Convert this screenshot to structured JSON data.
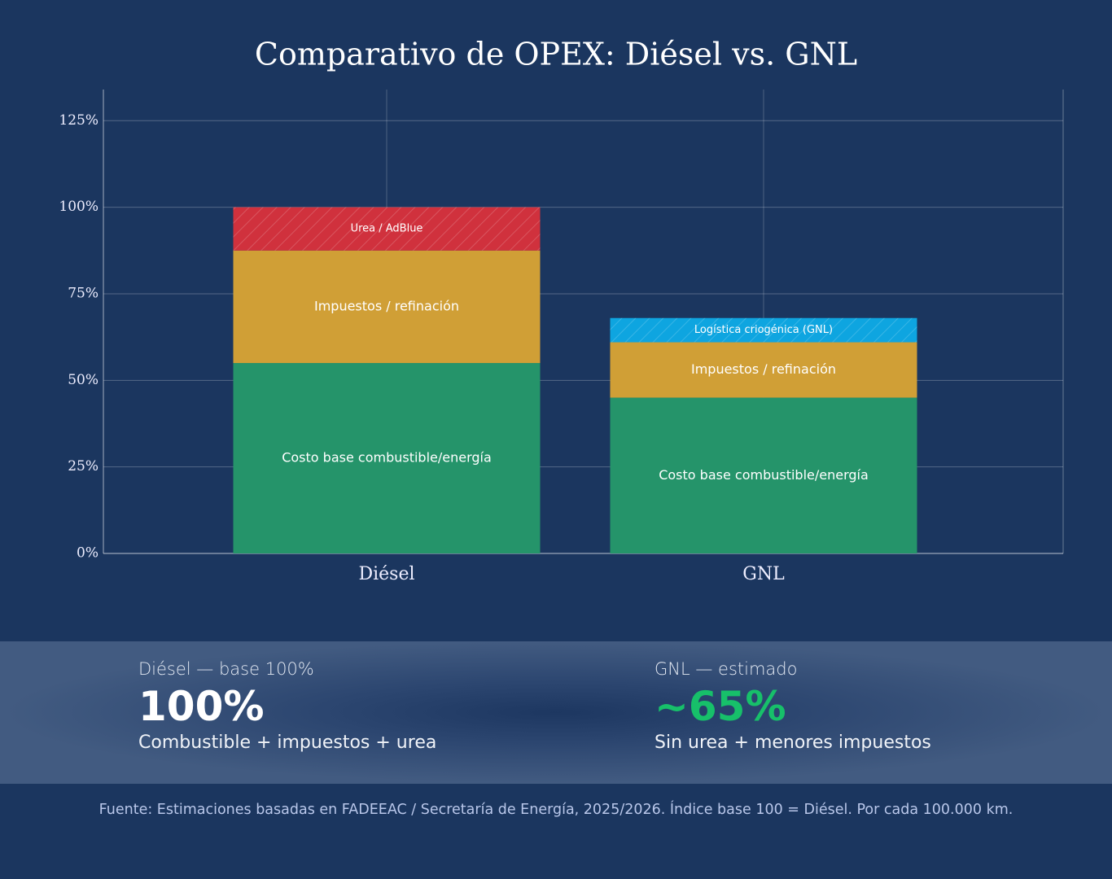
{
  "chart_data": {
    "type": "stacked-bar",
    "title": "Comparativo de OPEX: Diésel vs. GNL",
    "categories": [
      "Diésel",
      "GNL"
    ],
    "series": [
      {
        "name": "Costo base combustible/energía",
        "color": "#25946a",
        "values": [
          55,
          45
        ]
      },
      {
        "name": "Impuestos / refinación",
        "color": "#d09f36",
        "values": [
          32.5,
          16
        ]
      },
      {
        "name": "Urea / AdBlue",
        "color": "#d0313d",
        "pattern": "hatch",
        "values": [
          12.5,
          null
        ]
      },
      {
        "name": "Logística criogénica (GNL)",
        "color": "#0ea5e0",
        "pattern": "hatch",
        "values": [
          null,
          7
        ]
      }
    ],
    "ylim": [
      0,
      134
    ],
    "yticks": [
      {
        "value": 0,
        "label": "0%"
      },
      {
        "value": 25,
        "label": "25%"
      },
      {
        "value": 50,
        "label": "50%"
      },
      {
        "value": 75,
        "label": "75%"
      },
      {
        "value": 100,
        "label": "100%"
      },
      {
        "value": 125,
        "label": "125%"
      }
    ],
    "grid": true
  },
  "summary": [
    {
      "label": "Diésel — base 100%",
      "value": "100%",
      "note": "Combustible + impuestos + urea"
    },
    {
      "label": "GNL — estimado",
      "value": "~65%",
      "note": "Sin urea + menores impuestos"
    }
  ],
  "footer": "Fuente: Estimaciones basadas en FADEEAC / Secretaría de Energía, 2025/2026. Índice base 100 = Diésel. Por cada 100.000 km."
}
